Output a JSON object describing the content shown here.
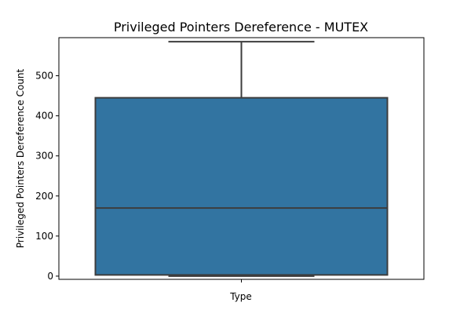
{
  "chart_data": {
    "type": "box",
    "title": "Privileged Pointers Dereference - MUTEX",
    "xlabel": "Type",
    "ylabel": "Privileged Pointers Dereference Count",
    "yticks": [
      0,
      100,
      200,
      300,
      400,
      500
    ],
    "ylim": [
      -8,
      595
    ],
    "grid": false,
    "boxes": [
      {
        "min": 0,
        "q1": 3,
        "median": 170,
        "q3": 445,
        "max": 585,
        "color": "#3274a1"
      }
    ]
  }
}
